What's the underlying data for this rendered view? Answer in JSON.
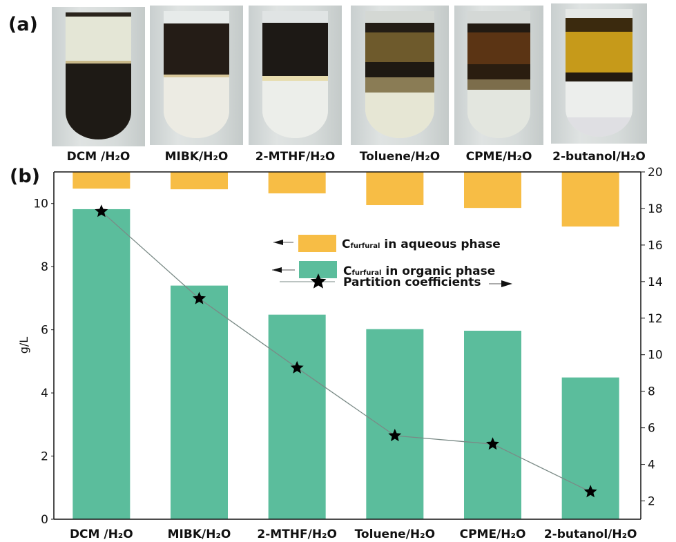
{
  "panel_a_label": "(a)",
  "panel_b_label": "(b)",
  "photos": [
    {
      "label": "DCM /H₂O"
    },
    {
      "label": "MIBK/H₂O"
    },
    {
      "label": "2-MTHF/H₂O"
    },
    {
      "label": "Toluene/H₂O"
    },
    {
      "label": "CPME/H₂O"
    },
    {
      "label": "2-butanol/H₂O"
    }
  ],
  "colors": {
    "aqueous": "#f7bd45",
    "organic": "#5bbd9c",
    "line": "#7a8a86",
    "star": "#000000"
  },
  "chart_data": {
    "type": "bar",
    "categories": [
      "DCM /H₂O",
      "MIBK/H₂O",
      "2-MTHF/H₂O",
      "Toluene/H₂O",
      "CPME/H₂O",
      "2-butanol/H₂O"
    ],
    "ylabel": "g/L",
    "ylim": [
      0,
      11
    ],
    "y_ticks": [
      "0",
      "2",
      "4",
      "6",
      "8",
      "10"
    ],
    "y2lim": [
      1,
      20
    ],
    "y2_ticks": [
      "2",
      "4",
      "6",
      "8",
      "10",
      "12",
      "14",
      "16",
      "18",
      "20"
    ],
    "series": [
      {
        "name": "aqueous",
        "legend": {
          "main": "C",
          "sub": "furfural",
          "rest": " in  aqueous phase"
        },
        "axis": "left",
        "direction": "down-from-top",
        "values": [
          0.53,
          0.55,
          0.68,
          1.05,
          1.14,
          1.73
        ]
      },
      {
        "name": "organic",
        "legend": {
          "main": "C",
          "sub": "furfural",
          "rest": " in organic phase"
        },
        "axis": "left",
        "values": [
          9.82,
          7.4,
          6.48,
          6.02,
          5.97,
          4.49
        ]
      },
      {
        "name": "partition",
        "legend": {
          "main": "Partition coefficients"
        },
        "type": "line",
        "marker": "star",
        "axis": "right",
        "values": [
          17.84,
          13.07,
          9.28,
          5.57,
          5.11,
          2.5
        ]
      }
    ],
    "legend_position": "center"
  }
}
